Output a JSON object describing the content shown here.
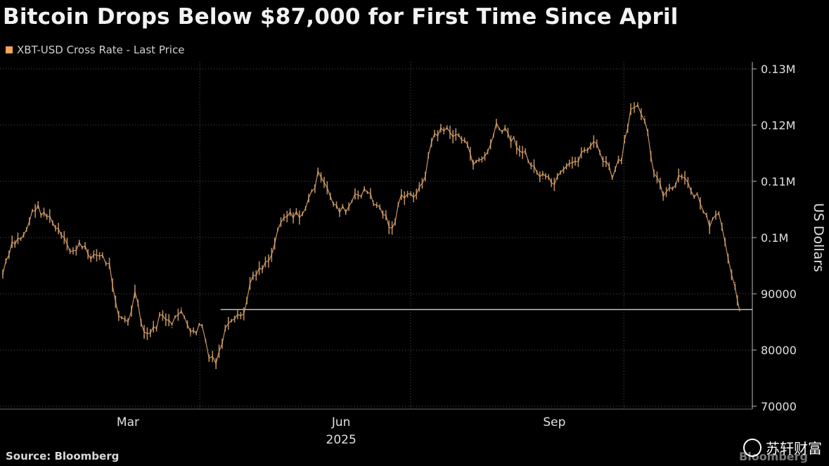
{
  "header": {
    "title": "Bitcoin Drops Below $87,000 for First Time Since April",
    "legend_label": "XBT-USD Cross Rate - Last Price"
  },
  "footer": {
    "source": "Source: Bloomberg",
    "brand": "Bloomberg",
    "watermark_text": "苏轩财富"
  },
  "colors": {
    "background": "#000000",
    "series": "#d9a36b",
    "grid": "#555555",
    "reference_line": "#d0d0d0"
  },
  "chart_data": {
    "type": "line",
    "title": "Bitcoin Drops Below $87,000 for First Time Since April",
    "ylabel": "US Dollars",
    "ylim": [
      70000,
      130000
    ],
    "y_ticks": [
      {
        "value": 130000,
        "label": "0.13M"
      },
      {
        "value": 120000,
        "label": "0.12M"
      },
      {
        "value": 110000,
        "label": "0.11M"
      },
      {
        "value": 100000,
        "label": "0.1M"
      },
      {
        "value": 90000,
        "label": "90000"
      },
      {
        "value": 80000,
        "label": "80000"
      },
      {
        "value": 70000,
        "label": "70000"
      }
    ],
    "x_ticks": [
      {
        "date": "2025-03-01",
        "label": "Mar"
      },
      {
        "date": "2025-06-01",
        "label": "Jun"
      },
      {
        "date": "2025-09-01",
        "label": "Sep"
      }
    ],
    "x_year_label": "2025",
    "x_range": [
      "2025-01-06",
      "2025-11-20"
    ],
    "grid": true,
    "legend_position": "top-left",
    "reference_line": {
      "value": 87200,
      "from": "2025-04-10",
      "to": "2025-11-20"
    },
    "series": [
      {
        "name": "XBT-USD Cross Rate - Last Price",
        "x": [
          "2025-01-06",
          "2025-01-10",
          "2025-01-15",
          "2025-01-20",
          "2025-01-25",
          "2025-01-30",
          "2025-02-04",
          "2025-02-08",
          "2025-02-13",
          "2025-02-18",
          "2025-02-21",
          "2025-02-25",
          "2025-03-01",
          "2025-03-04",
          "2025-03-08",
          "2025-03-12",
          "2025-03-16",
          "2025-03-20",
          "2025-03-24",
          "2025-03-28",
          "2025-04-02",
          "2025-04-05",
          "2025-04-08",
          "2025-04-12",
          "2025-04-16",
          "2025-04-20",
          "2025-04-24",
          "2025-04-28",
          "2025-05-02",
          "2025-05-06",
          "2025-05-10",
          "2025-05-14",
          "2025-05-18",
          "2025-05-22",
          "2025-05-26",
          "2025-05-30",
          "2025-06-03",
          "2025-06-07",
          "2025-06-11",
          "2025-06-15",
          "2025-06-19",
          "2025-06-23",
          "2025-06-27",
          "2025-07-01",
          "2025-07-06",
          "2025-07-10",
          "2025-07-14",
          "2025-07-18",
          "2025-07-23",
          "2025-07-28",
          "2025-08-02",
          "2025-08-07",
          "2025-08-12",
          "2025-08-17",
          "2025-08-22",
          "2025-08-27",
          "2025-09-01",
          "2025-09-05",
          "2025-09-10",
          "2025-09-14",
          "2025-09-18",
          "2025-09-22",
          "2025-09-26",
          "2025-09-30",
          "2025-10-04",
          "2025-10-07",
          "2025-10-10",
          "2025-10-14",
          "2025-10-18",
          "2025-10-22",
          "2025-10-26",
          "2025-10-30",
          "2025-11-03",
          "2025-11-07",
          "2025-11-11",
          "2025-11-15",
          "2025-11-18",
          "2025-11-20"
        ],
        "y": [
          93500,
          98500,
          100500,
          105500,
          104000,
          101000,
          97500,
          98500,
          97000,
          96500,
          95000,
          86500,
          84500,
          90000,
          82500,
          83500,
          86500,
          84000,
          87500,
          82500,
          84500,
          78500,
          77500,
          83500,
          85000,
          86500,
          93500,
          95000,
          97000,
          103500,
          104500,
          103500,
          106500,
          111000,
          108500,
          105500,
          104500,
          107000,
          108500,
          106500,
          104500,
          101500,
          107000,
          107500,
          109000,
          117000,
          119500,
          118500,
          118000,
          113500,
          114000,
          119500,
          118500,
          116000,
          113000,
          110500,
          109500,
          111500,
          113500,
          115500,
          117000,
          114000,
          111000,
          114000,
          122000,
          124000,
          121500,
          112000,
          107500,
          108500,
          111000,
          108500,
          106500,
          101500,
          104500,
          95500,
          92000,
          87000
        ]
      }
    ]
  }
}
